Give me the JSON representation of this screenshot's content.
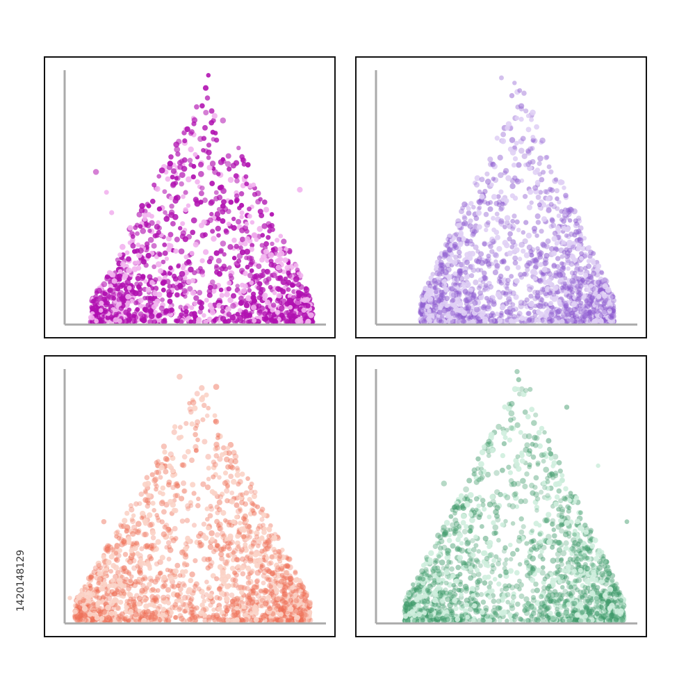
{
  "stock_id": "1420148129",
  "chart_data": [
    {
      "type": "scatter",
      "title": "",
      "xlabel": "",
      "ylabel": "",
      "xlim": [
        0,
        1
      ],
      "ylim": [
        0,
        1
      ],
      "grid": false,
      "color": "#b010b0",
      "highlight_color": "#f2b3ee",
      "opacity": 0.95,
      "point_count": 1400,
      "distribution": {
        "peak_x": 0.55,
        "spread_left": 0.45,
        "spread_right": 0.4,
        "max_y": 0.98
      },
      "outliers": [
        [
          0.55,
          0.98
        ],
        [
          0.54,
          0.93
        ],
        [
          0.12,
          0.6
        ],
        [
          0.16,
          0.52
        ],
        [
          0.18,
          0.44
        ],
        [
          0.9,
          0.53
        ]
      ]
    },
    {
      "type": "scatter",
      "title": "",
      "xlabel": "",
      "ylabel": "",
      "xlim": [
        0,
        1
      ],
      "ylim": [
        0,
        1
      ],
      "grid": false,
      "color": "#8e5cd0",
      "highlight_color": "#e0d0f5",
      "opacity": 0.55,
      "point_count": 1700,
      "distribution": {
        "peak_x": 0.55,
        "spread_left": 0.38,
        "spread_right": 0.36,
        "max_y": 0.97
      },
      "outliers": [
        [
          0.48,
          0.97
        ],
        [
          0.53,
          0.95
        ],
        [
          0.55,
          0.92
        ],
        [
          0.52,
          0.9
        ]
      ]
    },
    {
      "type": "scatter",
      "title": "",
      "xlabel": "",
      "ylabel": "",
      "xlim": [
        0,
        1
      ],
      "ylim": [
        0,
        1
      ],
      "grid": false,
      "color": "#ee6e55",
      "highlight_color": "#fbd3c7",
      "opacity": 0.5,
      "point_count": 1900,
      "distribution": {
        "peak_x": 0.52,
        "spread_left": 0.48,
        "spread_right": 0.42,
        "max_y": 0.97
      },
      "outliers": [
        [
          0.44,
          0.97
        ],
        [
          0.58,
          0.93
        ],
        [
          0.02,
          0.1
        ],
        [
          0.15,
          0.4
        ]
      ]
    },
    {
      "type": "scatter",
      "title": "",
      "xlabel": "",
      "ylabel": "",
      "xlim": [
        0,
        1
      ],
      "ylim": [
        0,
        1
      ],
      "grid": false,
      "color": "#3f9a6a",
      "highlight_color": "#cfeede",
      "opacity": 0.5,
      "point_count": 1800,
      "distribution": {
        "peak_x": 0.55,
        "spread_left": 0.44,
        "spread_right": 0.4,
        "max_y": 0.99
      },
      "outliers": [
        [
          0.54,
          0.99
        ],
        [
          0.59,
          0.92
        ],
        [
          0.26,
          0.55
        ],
        [
          0.85,
          0.62
        ],
        [
          0.96,
          0.4
        ],
        [
          0.73,
          0.85
        ]
      ]
    }
  ]
}
